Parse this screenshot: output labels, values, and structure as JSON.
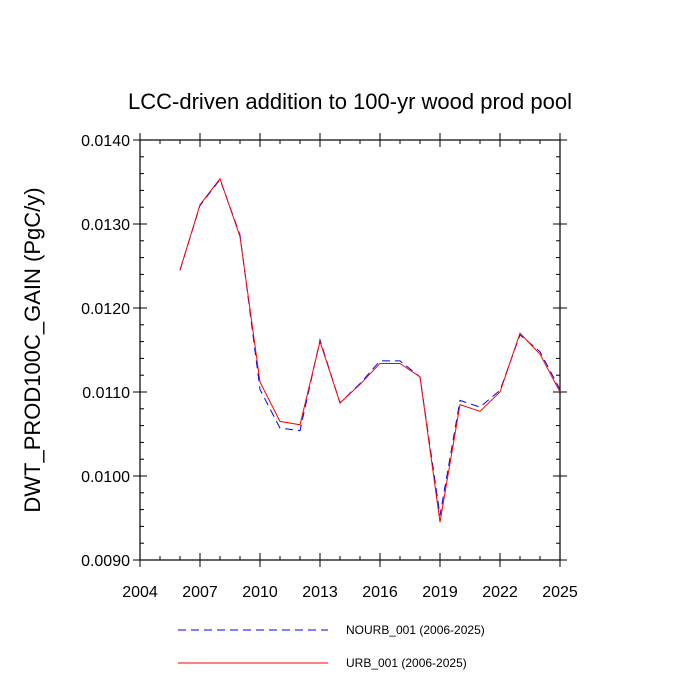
{
  "chart_data": {
    "type": "line",
    "title": "LCC-driven addition to 100-yr wood prod pool",
    "xlabel": "",
    "ylabel": "DWT_PROD100C_GAIN  (PgC/y)",
    "xlim": [
      2004,
      2025
    ],
    "ylim": [
      0.009,
      0.014
    ],
    "xticks": [
      2004,
      2007,
      2010,
      2013,
      2016,
      2019,
      2022,
      2025
    ],
    "yticks": [
      0.009,
      0.01,
      0.011,
      0.012,
      0.013,
      0.014
    ],
    "ytick_labels": [
      "0.0090",
      "0.0100",
      "0.0110",
      "0.0120",
      "0.0130",
      "0.0140"
    ],
    "x": [
      2006,
      2007,
      2008,
      2009,
      2010,
      2011,
      2012,
      2013,
      2014,
      2015,
      2016,
      2017,
      2018,
      2019,
      2020,
      2021,
      2022,
      2023,
      2024,
      2025
    ],
    "series": [
      {
        "name": "NOURB_001 (2006-2025)",
        "color": "#0000ff",
        "style": "dashed",
        "values": [
          0.01245,
          0.01322,
          0.01353,
          0.01287,
          0.01103,
          0.01057,
          0.01054,
          0.01162,
          0.01087,
          0.0111,
          0.01137,
          0.01137,
          0.01118,
          0.00953,
          0.0109,
          0.01082,
          0.01102,
          0.01168,
          0.01148,
          0.01103
        ]
      },
      {
        "name": "URB_001 (2006-2025)",
        "color": "#ff0000",
        "style": "solid",
        "values": [
          0.01245,
          0.01323,
          0.01354,
          0.01285,
          0.01112,
          0.01065,
          0.01061,
          0.0116,
          0.01087,
          0.01109,
          0.01134,
          0.01134,
          0.01118,
          0.00945,
          0.01085,
          0.01077,
          0.011,
          0.0117,
          0.01145,
          0.011
        ]
      }
    ],
    "legend_position": "bottom"
  }
}
